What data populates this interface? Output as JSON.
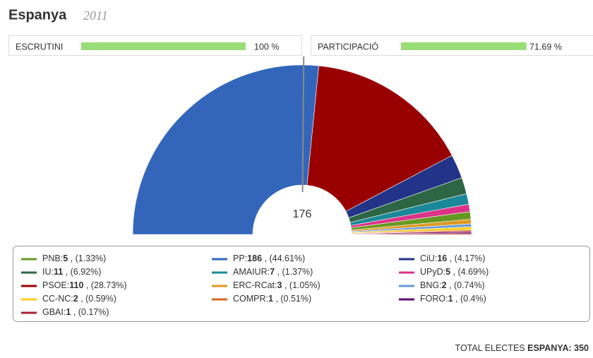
{
  "header": {
    "title": "Espanya",
    "year": "2011"
  },
  "progress": [
    {
      "label": "ESCRUTINI",
      "value": 100,
      "value_label": "100 %",
      "color": "#99dd77"
    },
    {
      "label": "PARTICIPACIÓ",
      "value": 71.69,
      "value_label": "71.69 %",
      "color": "#99dd77"
    }
  ],
  "chart_data": {
    "type": "pie",
    "shape": "semicircle-donut",
    "majority": 176,
    "label_separator": ":",
    "count_separator": " , ",
    "series": [
      {
        "name": "PP",
        "color": "#3366bb",
        "values": [
          186
        ],
        "percent_labels": [
          "(44.61%)"
        ]
      },
      {
        "name": "PSOE",
        "color": "#990000",
        "values": [
          110
        ],
        "percent_labels": [
          "(28.73%)"
        ]
      },
      {
        "name": "CiU",
        "color": "#223388",
        "values": [
          16
        ],
        "percent_labels": [
          "(4.17%)"
        ]
      },
      {
        "name": "IU",
        "color": "#2d6644",
        "values": [
          11
        ],
        "percent_labels": [
          "(6.92%)"
        ]
      },
      {
        "name": "AMAIUR",
        "color": "#1a8899",
        "values": [
          7
        ],
        "percent_labels": [
          "(1.37%)"
        ]
      },
      {
        "name": "UPyD",
        "color": "#dd3388",
        "values": [
          5
        ],
        "percent_labels": [
          "(4.69%)"
        ]
      },
      {
        "name": "PNB",
        "color": "#669922",
        "values": [
          5
        ],
        "percent_labels": [
          "(1.33%)"
        ]
      },
      {
        "name": "ERC-RCat",
        "color": "#dd9922",
        "values": [
          3
        ],
        "percent_labels": [
          "(1.05%)"
        ]
      },
      {
        "name": "BNG",
        "color": "#6699dd",
        "values": [
          2
        ],
        "percent_labels": [
          "(0.74%)"
        ]
      },
      {
        "name": "CC-NC",
        "color": "#ffcc22",
        "values": [
          2
        ],
        "percent_labels": [
          "(0.59%)"
        ]
      },
      {
        "name": "COMPR",
        "color": "#dd6622",
        "values": [
          1
        ],
        "percent_labels": [
          "(0.51%)"
        ]
      },
      {
        "name": "FORO",
        "color": "#660077",
        "values": [
          1
        ],
        "percent_labels": [
          "(0.4%)"
        ]
      },
      {
        "name": "GBAI",
        "color": "#aa2233",
        "values": [
          1
        ],
        "percent_labels": [
          "(0.17%)"
        ]
      }
    ]
  },
  "footer": {
    "total_label": "TOTAL ELECTES",
    "total_region": "ESPANYA:",
    "total_seats": 350
  }
}
